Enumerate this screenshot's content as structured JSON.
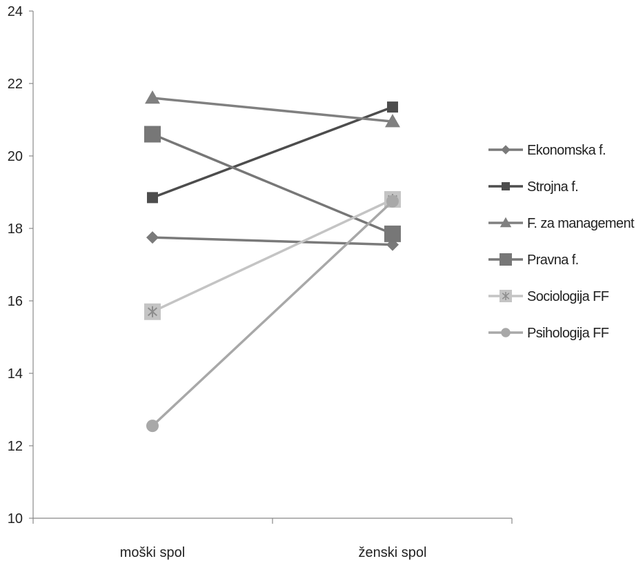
{
  "chart_data": {
    "type": "line",
    "categories": [
      "moški spol",
      "ženski spol"
    ],
    "ylim": [
      10,
      24
    ],
    "yticks": [
      10,
      12,
      14,
      16,
      18,
      20,
      22,
      24
    ],
    "grid": false,
    "legend_position": "right",
    "series": [
      {
        "name": "Ekonomska f.",
        "values": [
          17.75,
          17.55
        ],
        "color": "#7a7a7a",
        "marker": "diamond"
      },
      {
        "name": "Strojna f.",
        "values": [
          18.85,
          21.35
        ],
        "color": "#4d4d4d",
        "marker": "square"
      },
      {
        "name": "F. za management",
        "values": [
          21.6,
          20.95
        ],
        "color": "#808080",
        "marker": "triangle"
      },
      {
        "name": "Pravna f.",
        "values": [
          20.6,
          17.85
        ],
        "color": "#777777",
        "marker": "square-large"
      },
      {
        "name": "Sociologija FF",
        "values": [
          15.7,
          18.8
        ],
        "color": "#c4c4c4",
        "marker": "asterisk-square"
      },
      {
        "name": "Psihologija FF",
        "values": [
          12.55,
          18.75
        ],
        "color": "#a8a8a8",
        "marker": "circle"
      }
    ]
  }
}
